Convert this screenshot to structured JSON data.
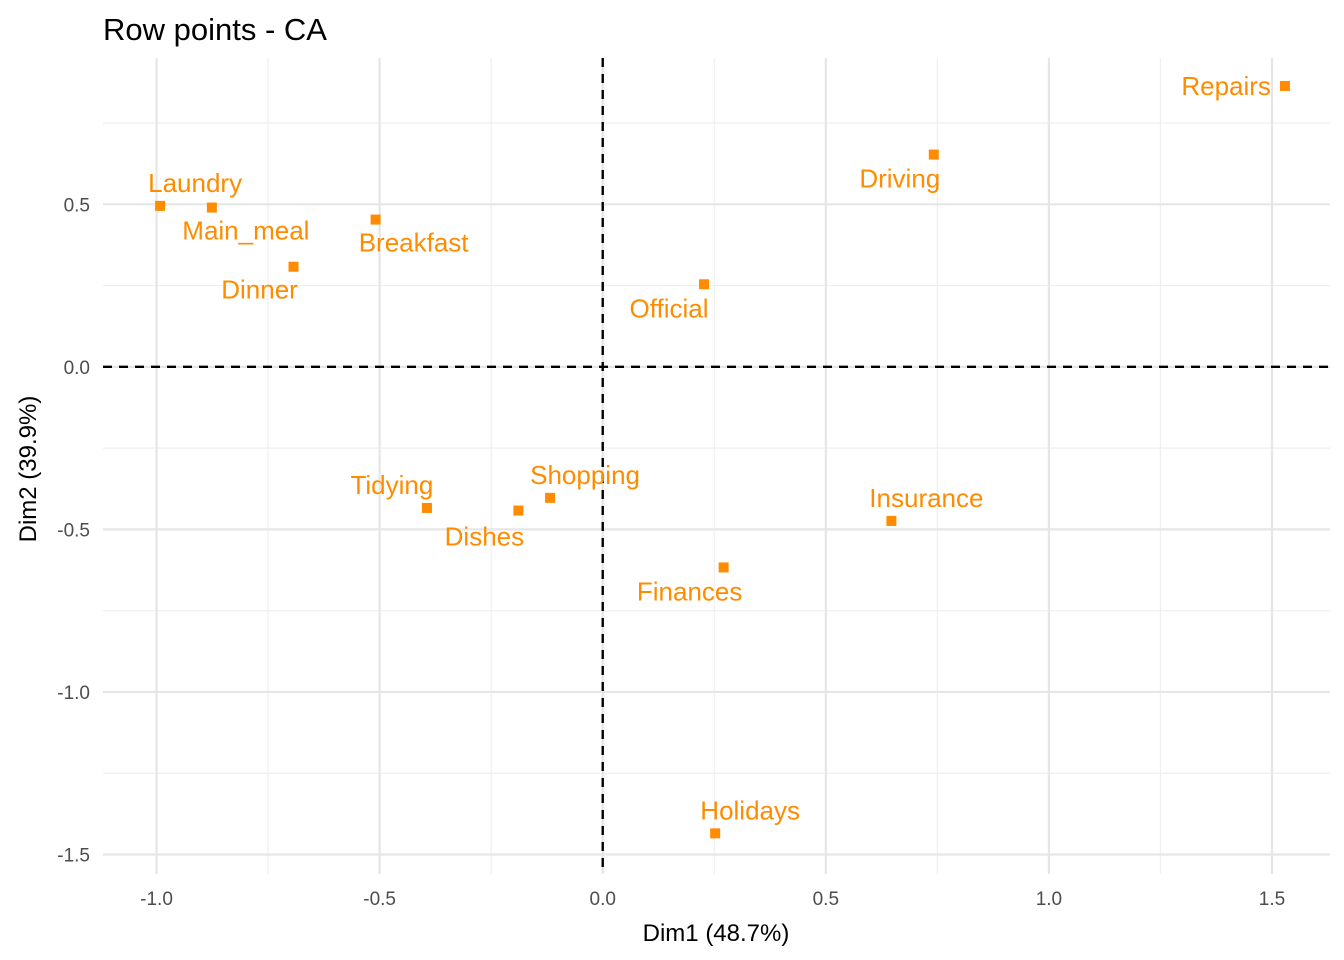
{
  "chart_data": {
    "type": "scatter",
    "title": "Row points - CA",
    "xlabel": "Dim1 (48.7%)",
    "ylabel": "Dim2 (39.9%)",
    "xlim": [
      -1.12,
      1.63
    ],
    "ylim": [
      -1.56,
      0.95
    ],
    "x_ticks": [
      -1.0,
      -0.5,
      0.0,
      0.5,
      1.0,
      1.5
    ],
    "x_tick_labels": [
      "-1.0",
      "-0.5",
      "0.0",
      "0.5",
      "1.0",
      "1.5"
    ],
    "y_ticks": [
      -1.5,
      -1.0,
      -0.5,
      0.0,
      0.5
    ],
    "y_tick_labels": [
      "-1.5",
      "-1.0",
      "-0.5",
      "0.0",
      "0.5"
    ],
    "grid": true,
    "reference_lines": {
      "x": 0,
      "y": 0,
      "style": "dashed"
    },
    "point_color": "#FF8C00",
    "marker": "square",
    "points": [
      {
        "label": "Laundry",
        "x": -0.992,
        "y": 0.495
      },
      {
        "label": "Main_meal",
        "x": -0.876,
        "y": 0.49
      },
      {
        "label": "Dinner",
        "x": -0.693,
        "y": 0.308
      },
      {
        "label": "Breakfast",
        "x": -0.509,
        "y": 0.453
      },
      {
        "label": "Tidying",
        "x": -0.394,
        "y": -0.434
      },
      {
        "label": "Dishes",
        "x": -0.189,
        "y": -0.442
      },
      {
        "label": "Shopping",
        "x": -0.118,
        "y": -0.403
      },
      {
        "label": "Official",
        "x": 0.227,
        "y": 0.254
      },
      {
        "label": "Driving",
        "x": 0.742,
        "y": 0.653
      },
      {
        "label": "Finances",
        "x": 0.271,
        "y": -0.617
      },
      {
        "label": "Insurance",
        "x": 0.647,
        "y": -0.474
      },
      {
        "label": "Repairs",
        "x": 1.529,
        "y": 0.864
      },
      {
        "label": "Holidays",
        "x": 0.252,
        "y": -1.435
      }
    ]
  }
}
